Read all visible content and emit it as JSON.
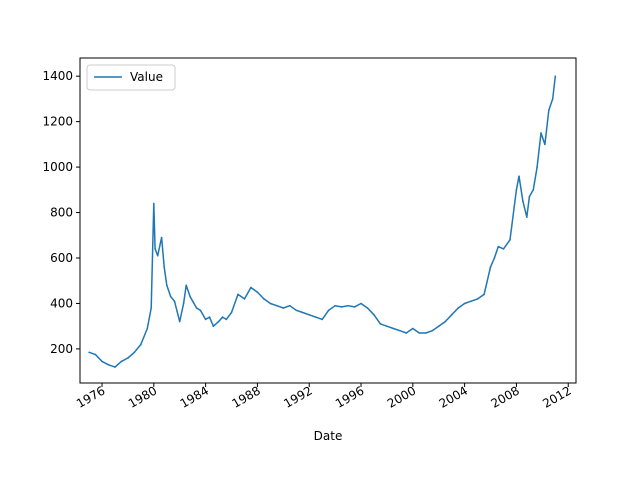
{
  "chart_data": {
    "type": "line",
    "title": "",
    "xlabel": "Date",
    "ylabel": "",
    "xlim": [
      1974.3,
      2012.6
    ],
    "ylim": [
      50,
      1480
    ],
    "grid": false,
    "legend": {
      "placement": "top-left",
      "entries": [
        "Value"
      ]
    },
    "x_ticks": [
      {
        "value": 1976,
        "label": "1976"
      },
      {
        "value": 1980,
        "label": "1980"
      },
      {
        "value": 1984,
        "label": "1984"
      },
      {
        "value": 1988,
        "label": "1988"
      },
      {
        "value": 1992,
        "label": "1992"
      },
      {
        "value": 1996,
        "label": "1996"
      },
      {
        "value": 2000,
        "label": "2000"
      },
      {
        "value": 2004,
        "label": "2004"
      },
      {
        "value": 2008,
        "label": "2008"
      },
      {
        "value": 2012,
        "label": "2012"
      }
    ],
    "y_ticks": [
      {
        "value": 200,
        "label": "200"
      },
      {
        "value": 400,
        "label": "400"
      },
      {
        "value": 600,
        "label": "600"
      },
      {
        "value": 800,
        "label": "800"
      },
      {
        "value": 1000,
        "label": "1000"
      },
      {
        "value": 1200,
        "label": "1200"
      },
      {
        "value": 1400,
        "label": "1400"
      }
    ],
    "series": [
      {
        "name": "Value",
        "color": "#1f77b4",
        "x": [
          1975.0,
          1975.5,
          1976.0,
          1976.5,
          1977.0,
          1977.5,
          1978.0,
          1978.5,
          1979.0,
          1979.5,
          1979.8,
          1980.0,
          1980.1,
          1980.3,
          1980.6,
          1980.8,
          1981.0,
          1981.3,
          1981.6,
          1982.0,
          1982.3,
          1982.5,
          1982.8,
          1983.0,
          1983.3,
          1983.6,
          1984.0,
          1984.3,
          1984.6,
          1985.0,
          1985.3,
          1985.6,
          1986.0,
          1986.5,
          1987.0,
          1987.5,
          1988.0,
          1988.5,
          1989.0,
          1989.5,
          1990.0,
          1990.5,
          1991.0,
          1991.5,
          1992.0,
          1992.5,
          1993.0,
          1993.5,
          1994.0,
          1994.5,
          1995.0,
          1995.5,
          1996.0,
          1996.5,
          1997.0,
          1997.5,
          1998.0,
          1998.5,
          1999.0,
          1999.5,
          2000.0,
          2000.5,
          2001.0,
          2001.5,
          2002.0,
          2002.5,
          2003.0,
          2003.5,
          2004.0,
          2004.5,
          2005.0,
          2005.5,
          2006.0,
          2006.3,
          2006.6,
          2007.0,
          2007.5,
          2008.0,
          2008.2,
          2008.5,
          2008.8,
          2009.0,
          2009.3,
          2009.6,
          2009.9,
          2010.2,
          2010.5,
          2010.8,
          2011.0
        ],
        "values": [
          185,
          175,
          145,
          130,
          120,
          145,
          160,
          185,
          220,
          290,
          380,
          840,
          640,
          610,
          690,
          560,
          480,
          430,
          410,
          320,
          400,
          480,
          430,
          410,
          380,
          370,
          330,
          340,
          300,
          320,
          340,
          330,
          360,
          440,
          420,
          470,
          450,
          420,
          400,
          390,
          380,
          390,
          370,
          360,
          350,
          340,
          330,
          370,
          390,
          385,
          390,
          385,
          400,
          380,
          350,
          310,
          300,
          290,
          280,
          270,
          290,
          270,
          270,
          280,
          300,
          320,
          350,
          380,
          400,
          410,
          420,
          440,
          560,
          600,
          650,
          640,
          680,
          900,
          960,
          850,
          780,
          870,
          900,
          1000,
          1150,
          1100,
          1250,
          1300,
          1400
        ]
      }
    ]
  }
}
